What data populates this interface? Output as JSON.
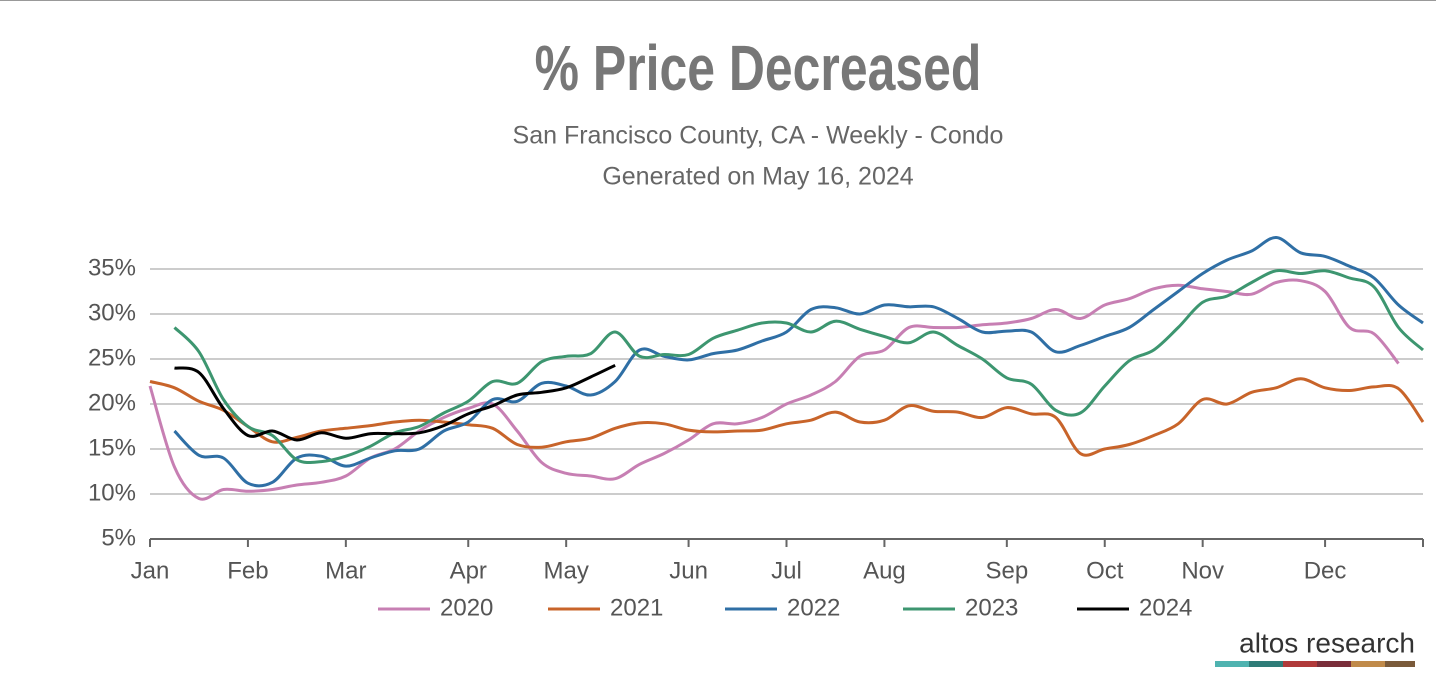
{
  "chart_data": {
    "type": "line",
    "title": "% Price Decreased",
    "subtitle": "San Francisco County, CA - Weekly - Condo",
    "generated": "Generated on May 16, 2024",
    "brand": "altos research",
    "categories": [
      "Jan",
      null,
      null,
      null,
      "Feb",
      null,
      null,
      null,
      "Mar",
      null,
      null,
      null,
      null,
      "Apr",
      null,
      null,
      null,
      "May",
      null,
      null,
      null,
      null,
      "Jun",
      null,
      null,
      null,
      "Jul",
      null,
      null,
      null,
      "Aug",
      null,
      null,
      null,
      null,
      "Sep",
      null,
      null,
      null,
      "Oct",
      null,
      null,
      null,
      "Nov",
      null,
      null,
      null,
      null,
      "Dec",
      null,
      null,
      null,
      null
    ],
    "ylim": [
      5,
      35
    ],
    "yticks": [
      {
        "value": 5,
        "label": "5%"
      },
      {
        "value": 10,
        "label": "10%"
      },
      {
        "value": 15,
        "label": "15%"
      },
      {
        "value": 20,
        "label": "20%"
      },
      {
        "value": 25,
        "label": "25%"
      },
      {
        "value": 30,
        "label": "30%"
      },
      {
        "value": 35,
        "label": "35%"
      }
    ],
    "grid": true,
    "legend": "bottom",
    "series": [
      {
        "name": "2020",
        "color": "#c77fb3",
        "values": [
          22,
          13,
          9.5,
          10.5,
          10.3,
          10.5,
          11,
          11.3,
          12,
          14,
          15,
          17,
          18.5,
          19.5,
          20,
          17,
          13.5,
          12.3,
          12,
          11.7,
          13.3,
          14.5,
          16,
          17.8,
          17.8,
          18.5,
          20,
          21,
          22.5,
          25.3,
          26,
          28.5,
          28.5,
          28.5,
          28.8,
          29,
          29.5,
          30.5,
          29.5,
          31,
          31.7,
          32.8,
          33.2,
          32.8,
          32.5,
          32.2,
          33.5,
          33.7,
          32.5,
          28.5,
          27.8,
          24.5,
          null
        ]
      },
      {
        "name": "2021",
        "color": "#c8642a",
        "values": [
          22.5,
          21.8,
          20.3,
          19.3,
          17.5,
          15.8,
          16.3,
          17,
          17.3,
          17.6,
          18,
          18.2,
          18,
          17.7,
          17.3,
          15.5,
          15.2,
          15.8,
          16.2,
          17.3,
          17.9,
          17.8,
          17.1,
          16.9,
          17,
          17.1,
          17.8,
          18.2,
          19.1,
          18,
          18.2,
          19.8,
          19.2,
          19.1,
          18.5,
          19.6,
          18.9,
          18.5,
          14.5,
          15,
          15.5,
          16.5,
          17.8,
          20.5,
          20,
          21.3,
          21.8,
          22.8,
          21.8,
          21.5,
          21.9,
          21.7,
          18
        ]
      },
      {
        "name": "2022",
        "color": "#2f6fa5",
        "values": [
          null,
          17,
          14.3,
          14,
          11.2,
          11.3,
          14,
          14.2,
          13.1,
          14,
          14.8,
          15,
          17,
          18,
          20.5,
          20.3,
          22.3,
          22,
          21,
          22.5,
          26,
          25.3,
          24.9,
          25.6,
          26,
          27,
          28,
          30.5,
          30.7,
          30,
          31,
          30.8,
          30.8,
          29.5,
          28,
          28.1,
          28,
          25.8,
          26.5,
          27.5,
          28.5,
          30.5,
          32.5,
          34.5,
          36,
          37,
          38.5,
          36.8,
          36.4,
          35.3,
          34,
          31,
          29
        ]
      },
      {
        "name": "2023",
        "color": "#3d9670",
        "values": [
          null,
          28.5,
          25.8,
          20.5,
          17.5,
          16.5,
          13.8,
          13.6,
          14.2,
          15.3,
          16.8,
          17.5,
          19,
          20.3,
          22.5,
          22.3,
          24.7,
          25.3,
          25.6,
          28,
          25.3,
          25.5,
          25.5,
          27.3,
          28.2,
          29,
          29,
          28,
          29.2,
          28.3,
          27.5,
          26.8,
          28,
          26.5,
          25,
          22.9,
          22.2,
          19.3,
          19,
          22,
          24.8,
          26,
          28.5,
          31.3,
          32,
          33.5,
          34.8,
          34.5,
          34.8,
          34,
          33,
          28.5,
          26
        ]
      },
      {
        "name": "2024",
        "color": "#000000",
        "values": [
          null,
          24,
          23.5,
          19.5,
          16.5,
          17,
          16,
          16.8,
          16.2,
          16.7,
          16.7,
          16.8,
          17.6,
          18.9,
          19.8,
          21,
          21.3,
          21.8,
          23,
          24.3,
          null,
          null,
          null,
          null,
          null,
          null,
          null,
          null,
          null,
          null,
          null,
          null,
          null,
          null,
          null,
          null,
          null,
          null,
          null,
          null,
          null,
          null,
          null,
          null,
          null,
          null,
          null,
          null,
          null,
          null,
          null,
          null,
          null
        ]
      }
    ]
  }
}
